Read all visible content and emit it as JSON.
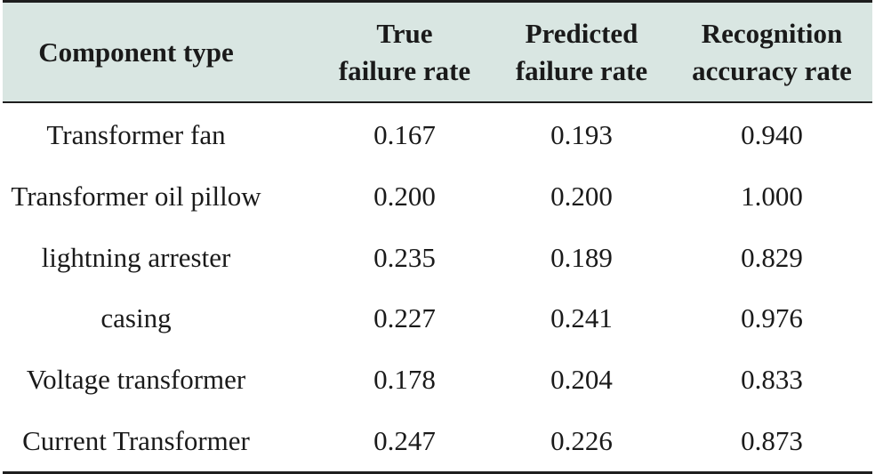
{
  "table": {
    "headers": [
      "Component type",
      "True\nfailure rate",
      "Predicted\nfailure rate",
      "Recognition\naccuracy rate"
    ],
    "rows": [
      [
        "Transformer fan",
        "0.167",
        "0.193",
        "0.940"
      ],
      [
        "Transformer oil pillow",
        "0.200",
        "0.200",
        "1.000"
      ],
      [
        "lightning arrester",
        "0.235",
        "0.189",
        "0.829"
      ],
      [
        "casing",
        "0.227",
        "0.241",
        "0.976"
      ],
      [
        "Voltage transformer",
        "0.178",
        "0.204",
        "0.833"
      ],
      [
        "Current Transformer",
        "0.247",
        "0.226",
        "0.873"
      ]
    ]
  },
  "colors": {
    "header_background": "#d9e6e2",
    "rule_color": "#1e1e1e",
    "text_color": "#1a1a1a"
  }
}
